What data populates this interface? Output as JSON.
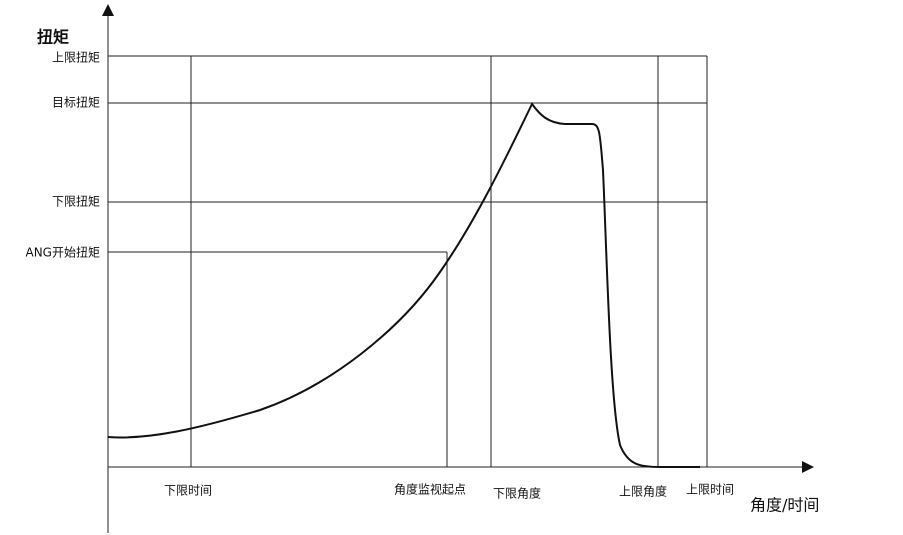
{
  "axes": {
    "y_title": "扭矩",
    "x_title": "角度/时间"
  },
  "y_labels": [
    "上限扭矩",
    "目标扭矩",
    "下限扭矩",
    "ANG开始扭矩"
  ],
  "x_labels": [
    "下限时间",
    "角度监视起点",
    "下限角度",
    "上限角度",
    "上限时间"
  ]
}
